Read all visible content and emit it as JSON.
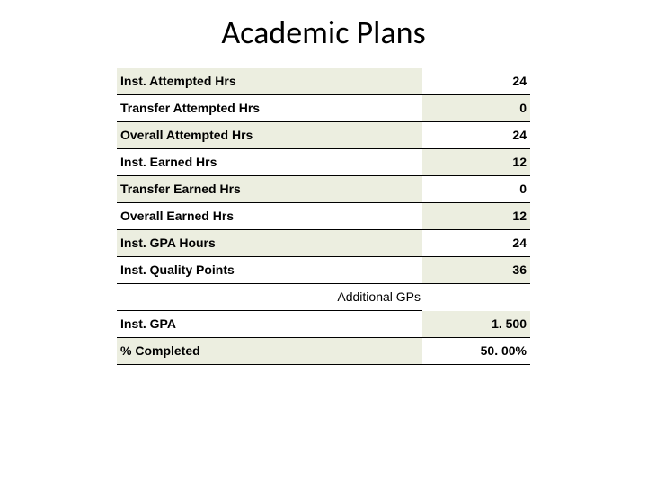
{
  "title": "Academic Plans",
  "table": {
    "rows": [
      {
        "label": "Inst. Attempted Hrs",
        "value": "24",
        "bg_label": "#eceee0",
        "bg_value": "#ffffff"
      },
      {
        "label": "Transfer Attempted Hrs",
        "value": "0",
        "bg_label": "#ffffff",
        "bg_value": "#eceee0"
      },
      {
        "label": "Overall Attempted Hrs",
        "value": "24",
        "bg_label": "#eceee0",
        "bg_value": "#ffffff"
      },
      {
        "label": "Inst. Earned Hrs",
        "value": "12",
        "bg_label": "#ffffff",
        "bg_value": "#eceee0"
      },
      {
        "label": "Transfer Earned Hrs",
        "value": "0",
        "bg_label": "#eceee0",
        "bg_value": "#ffffff"
      },
      {
        "label": "Overall Earned Hrs",
        "value": "12",
        "bg_label": "#ffffff",
        "bg_value": "#eceee0"
      },
      {
        "label": "Inst. GPA Hours",
        "value": "24",
        "bg_label": "#eceee0",
        "bg_value": "#ffffff"
      },
      {
        "label": "Inst. Quality Points",
        "value": "36",
        "bg_label": "#ffffff",
        "bg_value": "#eceee0"
      }
    ],
    "additional_label": "Additional GPs",
    "bottom_rows": [
      {
        "label": "Inst. GPA",
        "value": "1. 500",
        "bg_label": "#ffffff",
        "bg_value": "#eceee0"
      },
      {
        "label": "% Completed",
        "value": "50. 00%",
        "bg_label": "#eceee0",
        "bg_value": "#ffffff"
      }
    ]
  },
  "style": {
    "border_color": "#000000",
    "alt_bg": "#eceee0",
    "base_bg": "#ffffff",
    "label_fontsize": 14,
    "title_fontsize": 36
  }
}
